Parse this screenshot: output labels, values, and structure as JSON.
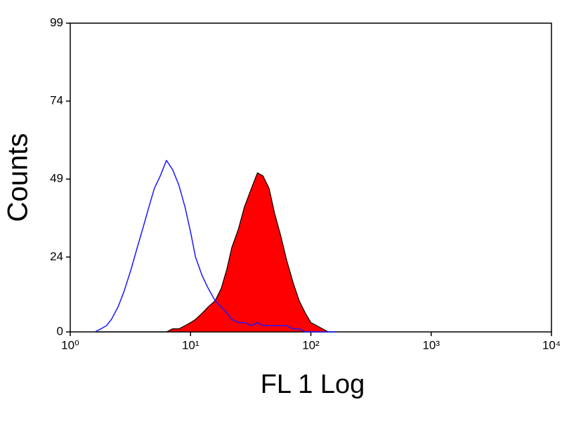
{
  "chart_data": {
    "type": "histogram",
    "xlabel": "FL 1 Log",
    "ylabel": "Counts",
    "xscale": "log",
    "xlim": [
      1,
      10000
    ],
    "xticks": [
      {
        "value": 1,
        "label": "10⁰"
      },
      {
        "value": 10,
        "label": "10¹"
      },
      {
        "value": 100,
        "label": "10²"
      },
      {
        "value": 1000,
        "label": "10³"
      },
      {
        "value": 10000,
        "label": "10⁴"
      }
    ],
    "ylim": [
      0,
      99
    ],
    "yticks": [
      0,
      24,
      49,
      74,
      99
    ],
    "x": [
      1.6,
      1.8,
      2,
      2.2,
      2.5,
      2.8,
      3.2,
      3.6,
      4,
      4.5,
      5,
      5.6,
      6.3,
      7.1,
      8,
      9,
      10,
      11,
      12.5,
      14,
      16,
      18,
      20,
      22,
      25,
      28,
      32,
      36,
      40,
      45,
      50,
      56,
      63,
      71,
      80,
      90,
      100,
      112,
      125,
      140,
      160
    ],
    "series": [
      {
        "color": "#ff0000",
        "filled": true,
        "values": [
          0,
          0,
          0,
          0,
          0,
          0,
          0,
          0,
          0,
          0,
          0,
          0,
          0,
          1,
          1,
          2,
          3,
          4,
          6,
          8,
          10,
          14,
          20,
          27,
          33,
          40,
          46,
          51,
          50,
          46,
          38,
          31,
          23,
          16,
          10,
          6,
          3,
          2,
          1,
          0,
          0
        ]
      },
      {
        "color": "#1a1aff",
        "filled": false,
        "values": [
          0,
          1,
          2,
          4,
          8,
          13,
          20,
          27,
          33,
          40,
          46,
          50,
          55,
          52,
          47,
          40,
          32,
          24,
          18,
          14,
          10,
          8,
          6,
          4,
          3,
          3,
          2,
          3,
          2,
          2,
          2,
          2,
          2,
          1,
          1,
          0,
          0,
          0,
          0,
          0,
          0
        ]
      }
    ]
  }
}
